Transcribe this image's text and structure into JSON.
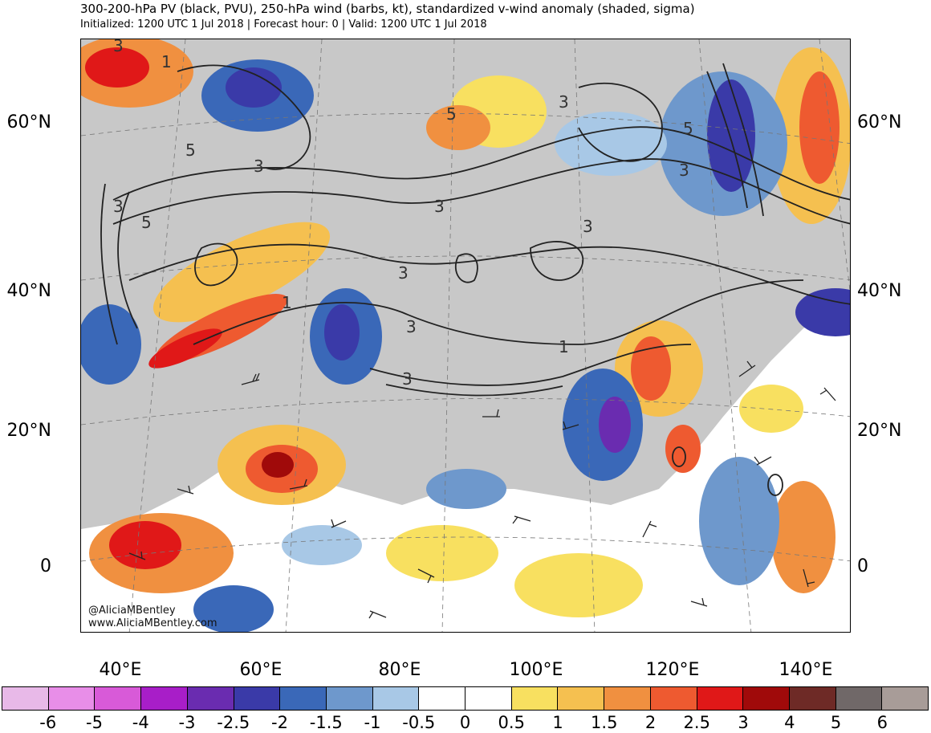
{
  "header": {
    "title": "300-200-hPa PV (black, PVU), 250-hPa wind (barbs, kt), standardized v-wind anomaly (shaded, sigma)",
    "subtitle": "Initialized: 1200 UTC 1 Jul 2018 | Forecast hour: 0 | Valid: 1200 UTC 1 Jul 2018"
  },
  "map": {
    "lat_labels_left": [
      "60°N",
      "40°N",
      "20°N",
      "0"
    ],
    "lat_labels_right": [
      "60°N",
      "40°N",
      "20°N",
      "0"
    ],
    "lon_labels": [
      "40°E",
      "60°E",
      "80°E",
      "100°E",
      "120°E",
      "140°E"
    ],
    "pv_contour_labels": [
      "1",
      "3",
      "5",
      "3",
      "5",
      "3",
      "3",
      "1",
      "3",
      "3",
      "3",
      "5",
      "3",
      "3",
      "1",
      "5",
      "3"
    ],
    "credit_handle": "@AliciaMBentley",
    "credit_url": "www.AliciaMBentley.com"
  },
  "colorbar": {
    "ticks": [
      "-6",
      "-5",
      "-4",
      "-3",
      "-2.5",
      "-2",
      "-1.5",
      "-1",
      "-0.5",
      "0",
      "0.5",
      "1",
      "1.5",
      "2",
      "2.5",
      "3",
      "4",
      "5",
      "6"
    ],
    "colors": [
      "#e8b9e8",
      "#e88ee8",
      "#d85ad8",
      "#a81ec8",
      "#6a2cb0",
      "#3a3aa8",
      "#3a68b8",
      "#6e98cc",
      "#a8c8e6",
      "#ffffff",
      "#ffffff",
      "#f8e060",
      "#f5c050",
      "#f09040",
      "#ee5a30",
      "#e01818",
      "#a00a0a",
      "#6e2a26",
      "#706868",
      "#a89c98"
    ]
  }
}
